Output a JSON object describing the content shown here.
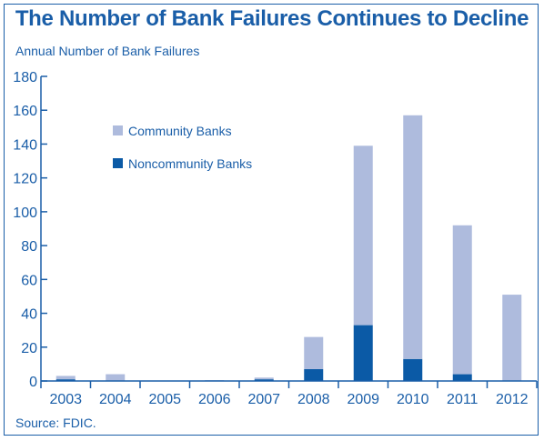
{
  "chart_data": {
    "type": "bar",
    "stacked": true,
    "title": "The Number of Bank Failures Continues to Decline",
    "ylabel": "Annual Number of Bank Failures",
    "xlabel": "",
    "source": "Source: FDIC.",
    "categories": [
      "2003",
      "2004",
      "2005",
      "2006",
      "2007",
      "2008",
      "2009",
      "2010",
      "2011",
      "2012"
    ],
    "series": [
      {
        "name": "Noncommunity Banks",
        "color": "#0b5aa6",
        "values": [
          1,
          0,
          0,
          0,
          1,
          7,
          33,
          13,
          4,
          0
        ]
      },
      {
        "name": "Community Banks",
        "color": "#aebbdd",
        "values": [
          2,
          4,
          0,
          0.5,
          1,
          19,
          106,
          144,
          88,
          51
        ]
      }
    ],
    "ylim": [
      0,
      180
    ],
    "yticks": [
      0,
      20,
      40,
      60,
      80,
      100,
      120,
      140,
      160,
      180
    ],
    "grid": false,
    "legend_position": "top-left"
  }
}
